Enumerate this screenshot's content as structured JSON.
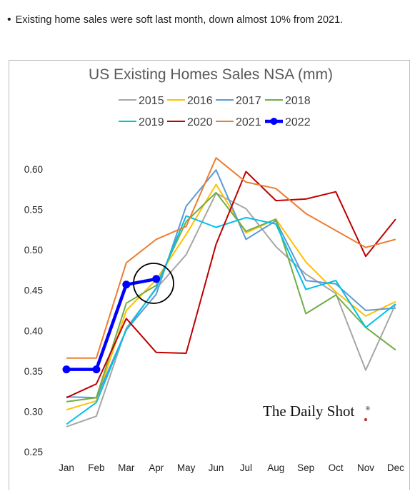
{
  "note": {
    "bullet": "•",
    "text": "Existing home sales were soft last month, down almost 10% from 2021."
  },
  "brand": {
    "text": "The Daily Shot",
    "mark": "®",
    "dot_color": "#c0392b"
  },
  "chart_data": {
    "type": "line",
    "title": "US Existing Homes Sales NSA (mm)",
    "xlabel": "",
    "ylabel": "",
    "categories": [
      "Jan",
      "Feb",
      "Mar",
      "Apr",
      "May",
      "Jun",
      "Jul",
      "Aug",
      "Sep",
      "Oct",
      "Nov",
      "Dec"
    ],
    "ylim": [
      0.25,
      0.6
    ],
    "yticks": [
      "0.25",
      "0.30",
      "0.35",
      "0.40",
      "0.45",
      "0.50",
      "0.55",
      "0.60"
    ],
    "ytick_values": [
      0.25,
      0.3,
      0.35,
      0.4,
      0.45,
      0.5,
      0.55,
      0.6
    ],
    "grid": false,
    "legend_position": "top",
    "annotation": "circle around Apr 2022",
    "series": [
      {
        "name": "2015",
        "color": "#a6a6a6",
        "values": [
          0.281,
          0.294,
          0.403,
          0.452,
          0.494,
          0.57,
          0.551,
          0.504,
          0.47,
          0.446,
          0.351,
          0.433
        ]
      },
      {
        "name": "2016",
        "color": "#ffc000",
        "values": [
          0.302,
          0.313,
          0.425,
          0.463,
          0.519,
          0.581,
          0.521,
          0.538,
          0.485,
          0.448,
          0.418,
          0.436
        ]
      },
      {
        "name": "2017",
        "color": "#5b9bd5",
        "values": [
          0.318,
          0.317,
          0.401,
          0.445,
          0.554,
          0.599,
          0.513,
          0.536,
          0.462,
          0.458,
          0.425,
          0.428
        ]
      },
      {
        "name": "2018",
        "color": "#70ad47",
        "values": [
          0.312,
          0.317,
          0.434,
          0.456,
          0.535,
          0.571,
          0.523,
          0.538,
          0.421,
          0.444,
          0.404,
          0.376
        ]
      },
      {
        "name": "2019",
        "color": "#00c0e8",
        "values": [
          0.284,
          0.311,
          0.401,
          0.453,
          0.542,
          0.528,
          0.54,
          0.532,
          0.451,
          0.462,
          0.404,
          0.433
        ]
      },
      {
        "name": "2020",
        "color": "#c00000",
        "values": [
          0.317,
          0.334,
          0.415,
          0.373,
          0.372,
          0.507,
          0.597,
          0.561,
          0.563,
          0.572,
          0.492,
          0.538
        ]
      },
      {
        "name": "2021",
        "color": "#ed7d31",
        "values": [
          0.366,
          0.366,
          0.484,
          0.513,
          0.529,
          0.614,
          0.584,
          0.576,
          0.545,
          0.524,
          0.503,
          0.513
        ]
      },
      {
        "name": "2022",
        "color": "#0000ff",
        "values": [
          0.352,
          0.352,
          0.457,
          0.464,
          null,
          null,
          null,
          null,
          null,
          null,
          null,
          null
        ]
      }
    ]
  }
}
